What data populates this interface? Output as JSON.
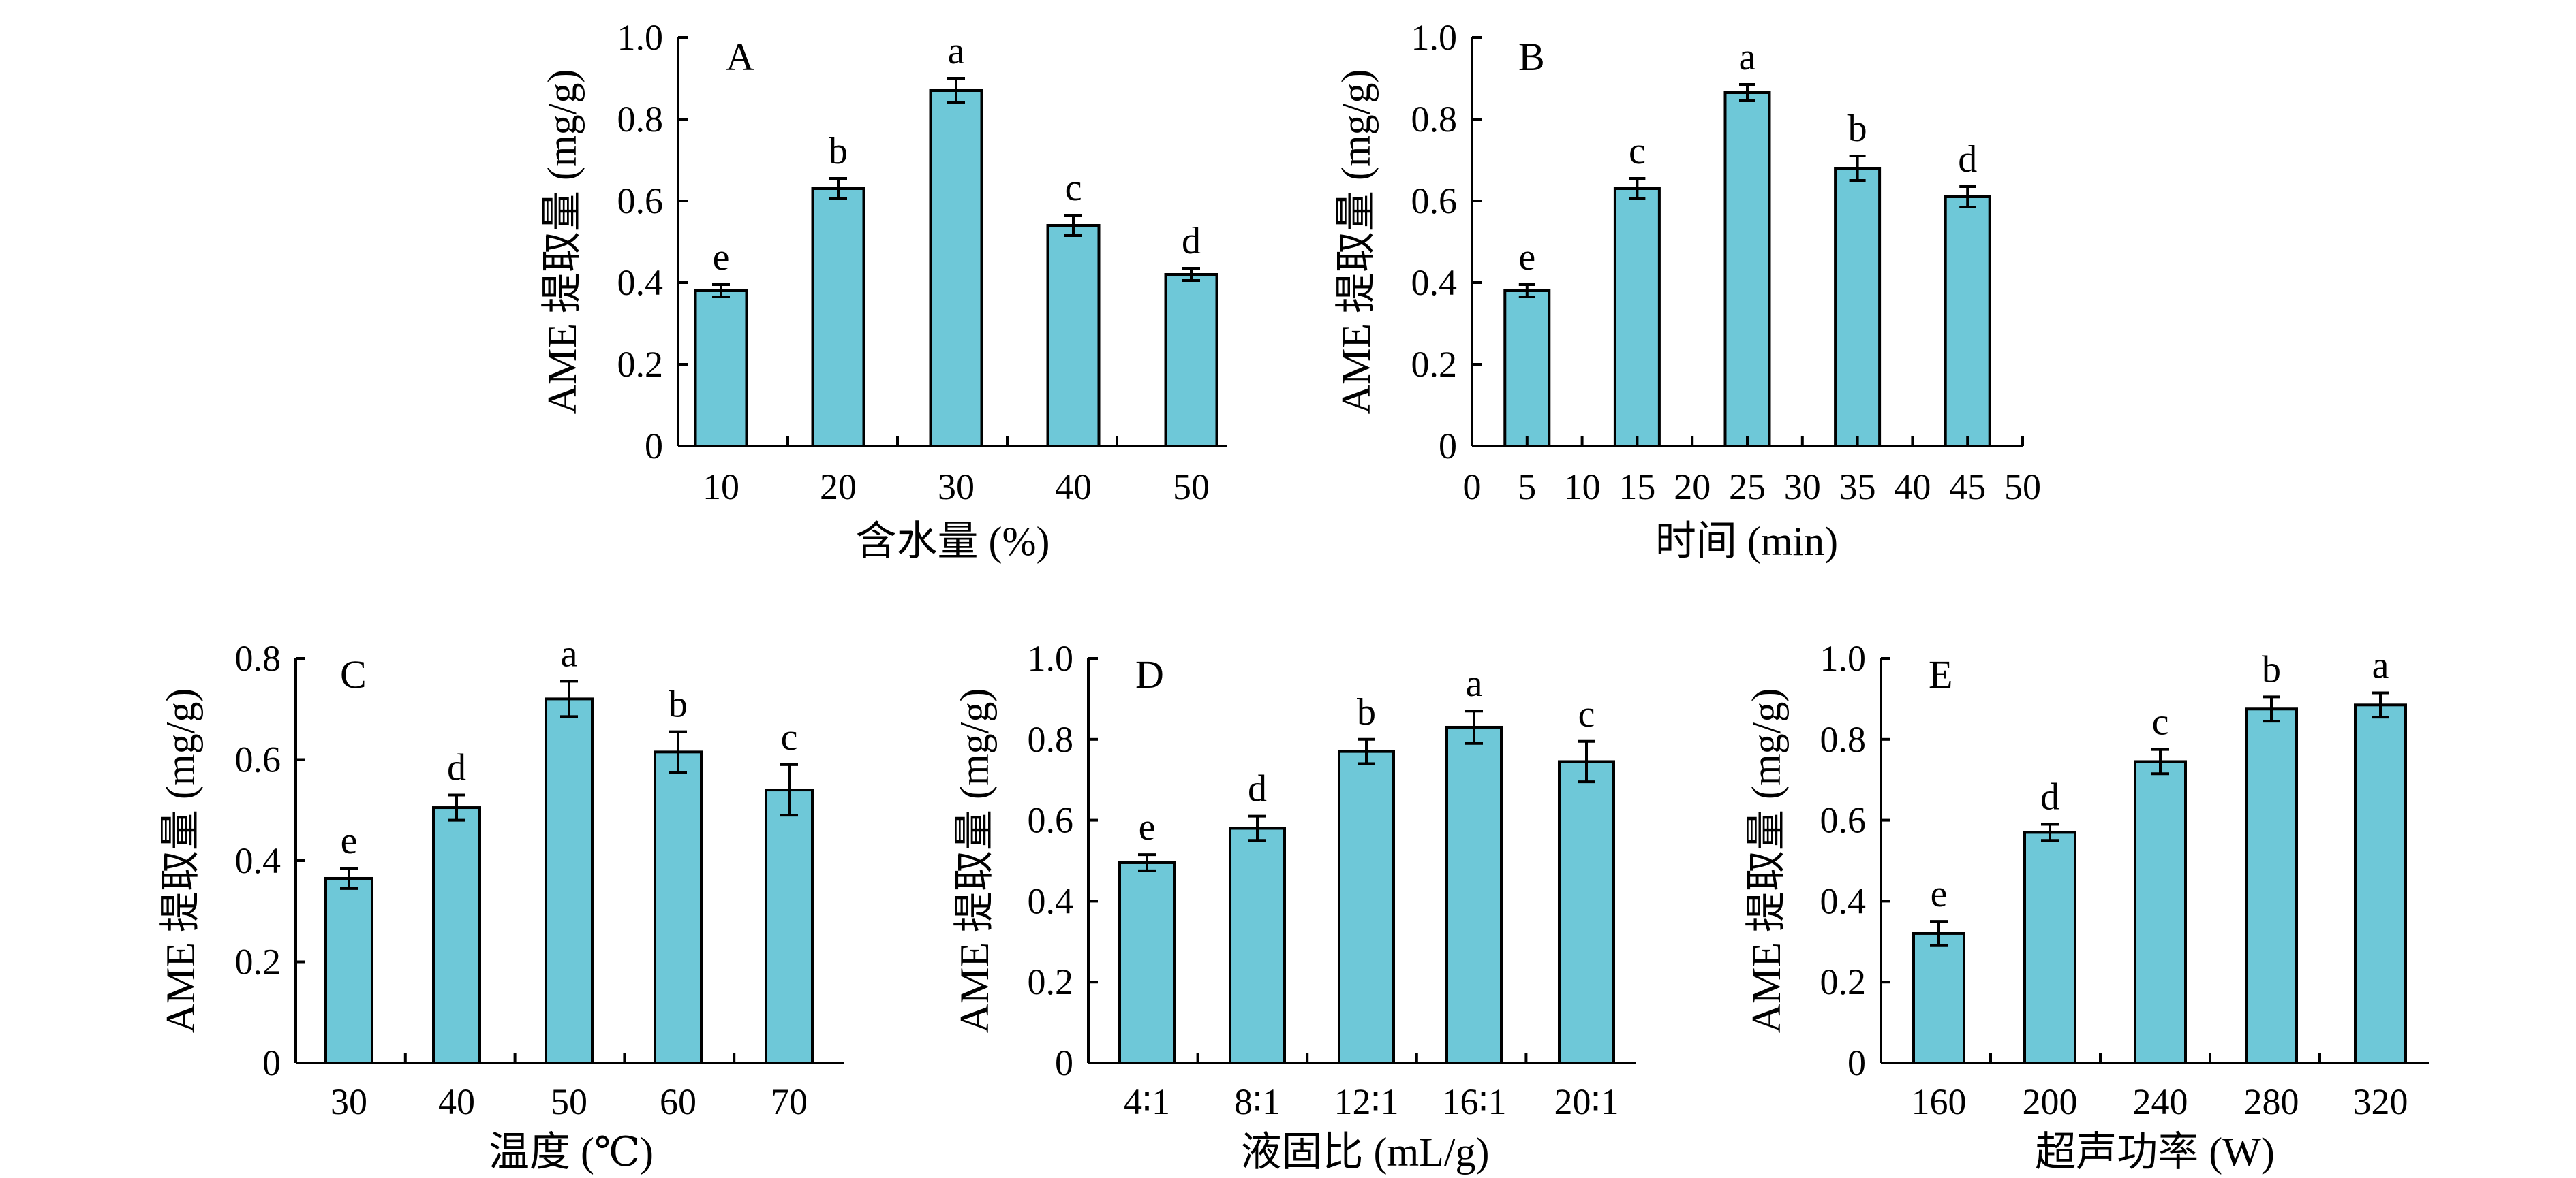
{
  "colors": {
    "bar_fill": "#6ec8d8",
    "bar_stroke": "#000000",
    "axis": "#000000"
  },
  "chart_data": [
    {
      "panel": "A",
      "type": "bar",
      "categories": [
        "10",
        "20",
        "30",
        "40",
        "50"
      ],
      "values": [
        0.38,
        0.63,
        0.87,
        0.54,
        0.42
      ],
      "errors": [
        0.015,
        0.025,
        0.03,
        0.025,
        0.015
      ],
      "sig_labels": [
        "e",
        "b",
        "a",
        "c",
        "d"
      ],
      "xlabel": "含水量 (%)",
      "ylabel": "AME 提取量 (mg/g)",
      "ylim": [
        0,
        1.0
      ],
      "yticks": [
        "0",
        "0.2",
        "0.4",
        "0.6",
        "0.8",
        "1.0"
      ],
      "xticks": [
        "10",
        "20",
        "30",
        "40",
        "50"
      ]
    },
    {
      "panel": "B",
      "type": "bar",
      "categories": [
        "5",
        "15",
        "25",
        "35",
        "45"
      ],
      "values": [
        0.38,
        0.63,
        0.865,
        0.68,
        0.61
      ],
      "errors": [
        0.015,
        0.025,
        0.02,
        0.03,
        0.025
      ],
      "sig_labels": [
        "e",
        "c",
        "a",
        "b",
        "d"
      ],
      "xlabel": "时间 (min)",
      "ylabel": "AME 提取量 (mg/g)",
      "ylim": [
        0,
        1.0
      ],
      "xlim": [
        0,
        50
      ],
      "yticks": [
        "0",
        "0.2",
        "0.4",
        "0.6",
        "0.8",
        "1.0"
      ],
      "xticks": [
        "0",
        "5",
        "10",
        "15",
        "20",
        "25",
        "30",
        "35",
        "40",
        "45",
        "50"
      ]
    },
    {
      "panel": "C",
      "type": "bar",
      "categories": [
        "30",
        "40",
        "50",
        "60",
        "70"
      ],
      "values": [
        0.365,
        0.505,
        0.72,
        0.615,
        0.54
      ],
      "errors": [
        0.02,
        0.025,
        0.035,
        0.04,
        0.05
      ],
      "sig_labels": [
        "e",
        "d",
        "a",
        "b",
        "c"
      ],
      "xlabel": "温度 (℃)",
      "ylabel": "AME 提取量 (mg/g)",
      "ylim": [
        0,
        0.8
      ],
      "yticks": [
        "0",
        "0.2",
        "0.4",
        "0.6",
        "0.8"
      ],
      "xticks": [
        "30",
        "40",
        "50",
        "60",
        "70"
      ]
    },
    {
      "panel": "D",
      "type": "bar",
      "categories": [
        "4∶1",
        "8∶1",
        "12∶1",
        "16∶1",
        "20∶1"
      ],
      "values": [
        0.495,
        0.58,
        0.77,
        0.83,
        0.745
      ],
      "errors": [
        0.02,
        0.03,
        0.03,
        0.04,
        0.05
      ],
      "sig_labels": [
        "e",
        "d",
        "b",
        "a",
        "c"
      ],
      "xlabel": "液固比 (mL/g)",
      "ylabel": "AME 提取量 (mg/g)",
      "ylim": [
        0,
        1.0
      ],
      "yticks": [
        "0",
        "0.2",
        "0.4",
        "0.6",
        "0.8",
        "1.0"
      ],
      "xticks": [
        "4∶1",
        "8∶1",
        "12∶1",
        "16∶1",
        "20∶1"
      ]
    },
    {
      "panel": "E",
      "type": "bar",
      "categories": [
        "160",
        "200",
        "240",
        "280",
        "320"
      ],
      "values": [
        0.32,
        0.57,
        0.745,
        0.875,
        0.885
      ],
      "errors": [
        0.03,
        0.02,
        0.03,
        0.03,
        0.03
      ],
      "sig_labels": [
        "e",
        "d",
        "c",
        "b",
        "a"
      ],
      "xlabel": "超声功率 (W)",
      "ylabel": "AME 提取量 (mg/g)",
      "ylim": [
        0,
        1.0
      ],
      "yticks": [
        "0",
        "0.2",
        "0.4",
        "0.6",
        "0.8",
        "1.0"
      ],
      "xticks": [
        "160",
        "200",
        "240",
        "280",
        "320"
      ]
    }
  ]
}
